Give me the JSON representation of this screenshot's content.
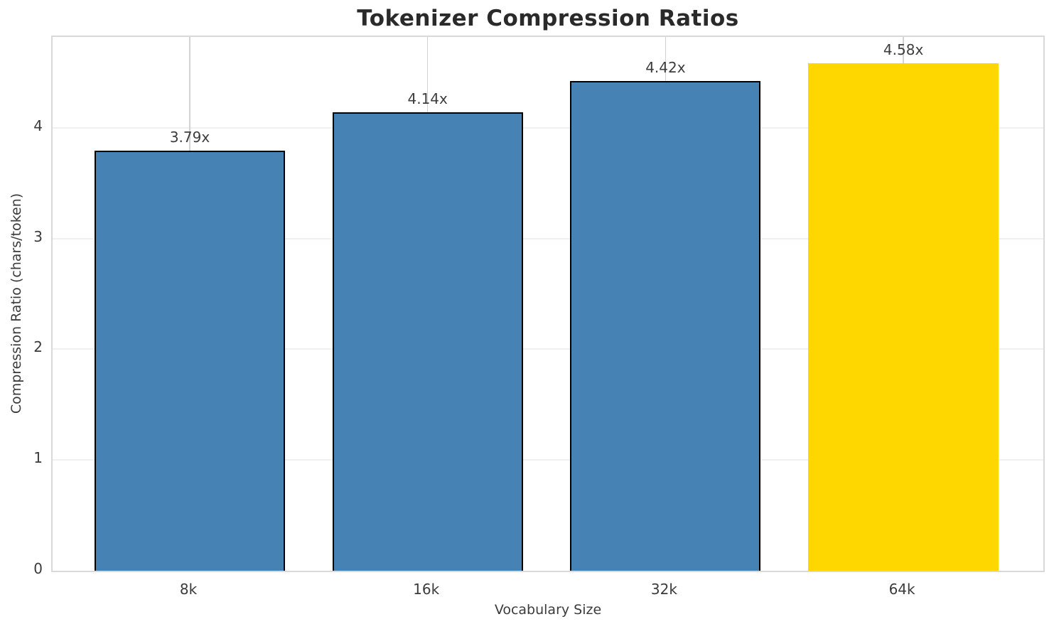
{
  "chart_data": {
    "type": "bar",
    "title": "Tokenizer Compression Ratios",
    "xlabel": "Vocabulary Size",
    "ylabel": "Compression Ratio (chars/token)",
    "categories": [
      "8k",
      "16k",
      "32k",
      "64k"
    ],
    "values": [
      3.79,
      4.14,
      4.42,
      4.58
    ],
    "value_labels": [
      "3.79x",
      "4.14x",
      "4.42x",
      "4.58x"
    ],
    "bar_colors": [
      "#4682B4",
      "#4682B4",
      "#4682B4",
      "#FFD700"
    ],
    "bar_edge_colors": [
      "#000000",
      "#000000",
      "#000000",
      "none"
    ],
    "highlighted_category": "64k",
    "yticks": [
      0,
      1,
      2,
      3,
      4
    ],
    "ylim": [
      0,
      4.82
    ],
    "grid": "both",
    "grid_color_horizontal": "#f0f0f0",
    "grid_color_vertical": "#d2d2d2",
    "spine_color": "#d9d9d9",
    "legend": "none"
  }
}
